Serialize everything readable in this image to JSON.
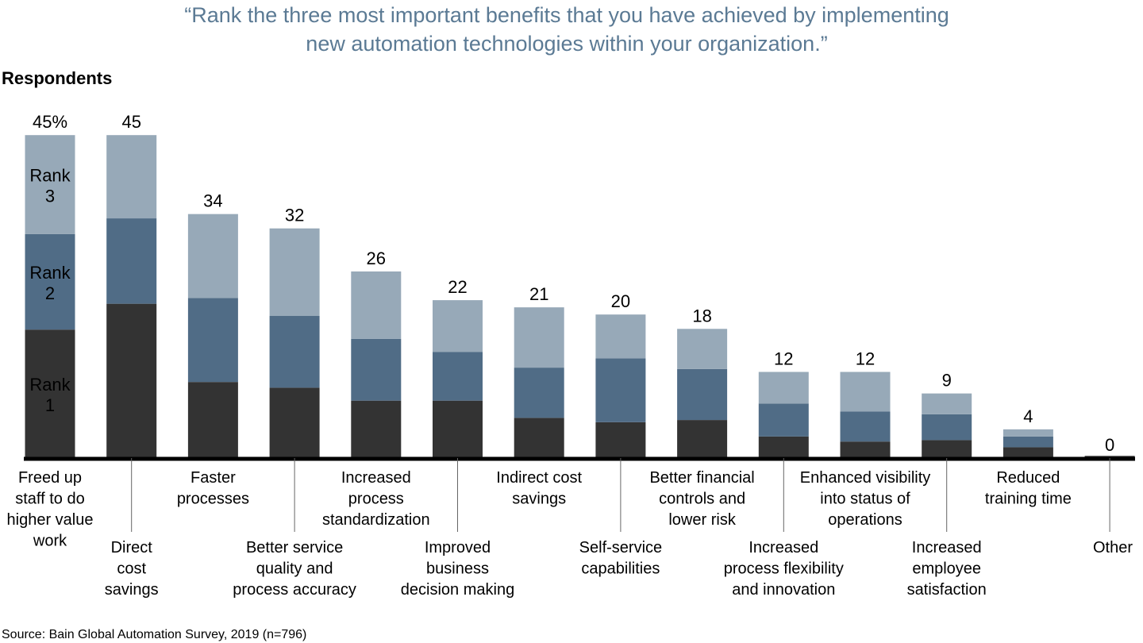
{
  "chart_data": {
    "type": "bar",
    "stacked": true,
    "title": "“Rank the three most important benefits that you have achieved by implementing new automation technologies within your organization.”",
    "title_lines": [
      "“Rank the three most important benefits that you have achieved by implementing",
      "new automation technologies within your organization.”"
    ],
    "ylabel": "Respondents",
    "ylim": [
      0,
      45
    ],
    "grid": false,
    "source": "Source: Bain Global Automation Survey, 2019 (n=796)",
    "categories": [
      [
        "Freed up",
        "staff to do",
        "higher value",
        "work"
      ],
      [
        "Direct",
        "cost",
        "savings"
      ],
      [
        "Faster",
        "processes"
      ],
      [
        "Better service",
        "quality and",
        "process accuracy"
      ],
      [
        "Increased",
        "process",
        "standardization"
      ],
      [
        "Improved",
        "business",
        "decision making"
      ],
      [
        "Indirect cost",
        "savings"
      ],
      [
        "Self-service",
        "capabilities"
      ],
      [
        "Better financial",
        "controls and",
        "lower risk"
      ],
      [
        "Increased",
        "process flexibility",
        "and innovation"
      ],
      [
        "Enhanced visibility",
        "into status of",
        "operations"
      ],
      [
        "Increased",
        "employee",
        "satisfaction"
      ],
      [
        "Reduced",
        "training time"
      ],
      [
        "Other"
      ]
    ],
    "totals_labels": [
      "45%",
      "45",
      "34",
      "32",
      "26",
      "22",
      "21",
      "20",
      "18",
      "12",
      "12",
      "9",
      "4",
      "0"
    ],
    "totals": [
      45,
      45,
      34,
      32,
      26,
      22,
      21,
      20,
      18,
      12,
      12,
      9,
      4,
      0
    ],
    "series": [
      {
        "name": "Rank 1",
        "label_lines": [
          "Rank",
          "1"
        ],
        "color": "#333333",
        "values": [
          17.9,
          21.5,
          10.6,
          9.8,
          8.0,
          8.0,
          5.6,
          5.0,
          5.3,
          3.0,
          2.3,
          2.5,
          1.5,
          0.3
        ]
      },
      {
        "name": "Rank 2",
        "label_lines": [
          "Rank",
          "2"
        ],
        "color": "#506c86",
        "values": [
          13.3,
          11.9,
          11.7,
          10.0,
          8.6,
          6.8,
          7.0,
          8.9,
          7.1,
          4.6,
          4.2,
          3.6,
          1.5,
          0
        ]
      },
      {
        "name": "Rank 3",
        "label_lines": [
          "Rank",
          "3"
        ],
        "color": "#97a9b8",
        "values": [
          13.8,
          11.6,
          11.7,
          12.2,
          9.4,
          7.2,
          8.4,
          6.1,
          5.6,
          4.4,
          5.5,
          2.9,
          1.0,
          0
        ]
      }
    ],
    "title_color": "#5b7a94"
  }
}
